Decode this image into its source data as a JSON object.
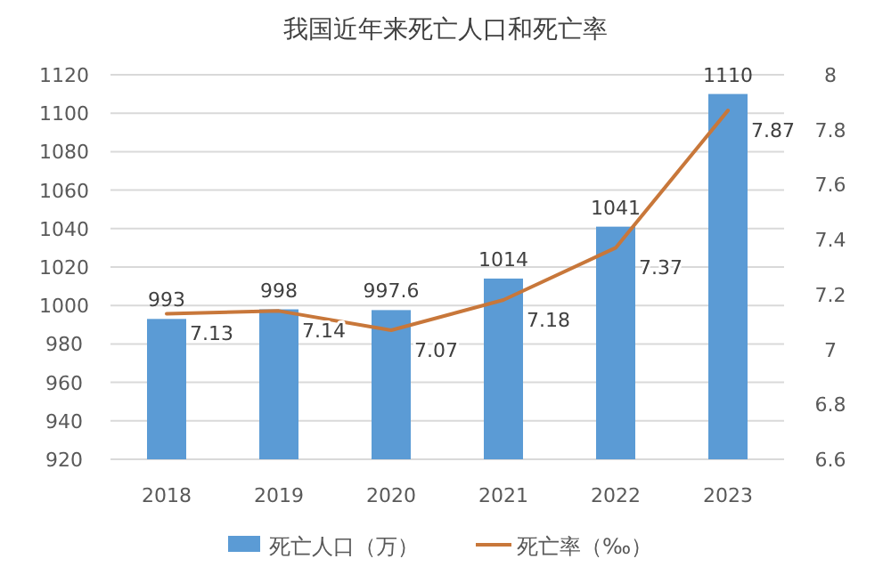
{
  "chart_data": {
    "type": "bar",
    "title": "我国近年来死亡人口和死亡率",
    "categories": [
      "2018",
      "2019",
      "2020",
      "2021",
      "2022",
      "2023"
    ],
    "series": [
      {
        "name": "死亡人口（万）",
        "color": "#5b9bd5",
        "values": [
          993,
          998,
          997.6,
          1014,
          1041,
          1110
        ]
      },
      {
        "name": "死亡率（‰）",
        "type": "line",
        "axis": "y2",
        "color": "#c8773a",
        "values": [
          7.13,
          7.14,
          7.07,
          7.18,
          7.37,
          7.87
        ]
      }
    ],
    "ylim": [
      920,
      1120
    ],
    "yticks": [
      920,
      940,
      960,
      980,
      1000,
      1020,
      1040,
      1060,
      1080,
      1100,
      1120
    ],
    "y2lim": [
      6.6,
      8
    ],
    "y2ticks": [
      6.6,
      6.8,
      7,
      7.2,
      7.4,
      7.6,
      7.8,
      8
    ],
    "grid": "y",
    "legend": "bottom",
    "data_labels": true
  }
}
